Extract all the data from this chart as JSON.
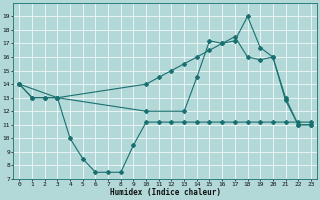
{
  "xlabel": "Humidex (Indice chaleur)",
  "bg_color": "#b2d8d8",
  "grid_color": "#ffffff",
  "line_color": "#1a7070",
  "xlim": [
    -0.5,
    23.5
  ],
  "ylim": [
    7,
    20
  ],
  "yticks": [
    7,
    8,
    9,
    10,
    11,
    12,
    13,
    14,
    15,
    16,
    17,
    18,
    19
  ],
  "xticks": [
    0,
    1,
    2,
    3,
    4,
    5,
    6,
    7,
    8,
    9,
    10,
    11,
    12,
    13,
    14,
    15,
    16,
    17,
    18,
    19,
    20,
    21,
    22,
    23
  ],
  "series1_x": [
    0,
    1,
    2,
    3,
    4,
    5,
    6,
    7,
    8,
    9,
    10,
    11,
    12,
    13,
    14,
    15,
    16,
    17,
    18,
    19,
    20,
    21,
    22,
    23
  ],
  "series1_y": [
    14,
    13,
    13,
    13,
    10,
    8.5,
    7.5,
    7.5,
    7.5,
    9.5,
    11.2,
    11.2,
    11.2,
    11.2,
    11.2,
    11.2,
    11.2,
    11.2,
    11.2,
    11.2,
    11.2,
    11.2,
    11.2,
    11.2
  ],
  "series2_x": [
    0,
    1,
    2,
    3,
    10,
    11,
    12,
    13,
    14,
    15,
    16,
    17,
    18,
    19,
    20,
    21,
    22,
    23
  ],
  "series2_y": [
    14,
    13,
    13,
    13,
    14,
    14.5,
    15,
    15.5,
    16,
    16.5,
    17,
    17.5,
    16,
    15.8,
    16,
    12.8,
    11,
    11
  ],
  "series3_x": [
    0,
    3,
    10,
    13,
    14,
    15,
    16,
    17,
    18,
    19,
    20,
    21,
    22,
    23
  ],
  "series3_y": [
    14,
    13,
    12,
    12,
    14.5,
    17.2,
    17,
    17.2,
    19,
    16.7,
    16,
    13,
    11,
    11
  ]
}
